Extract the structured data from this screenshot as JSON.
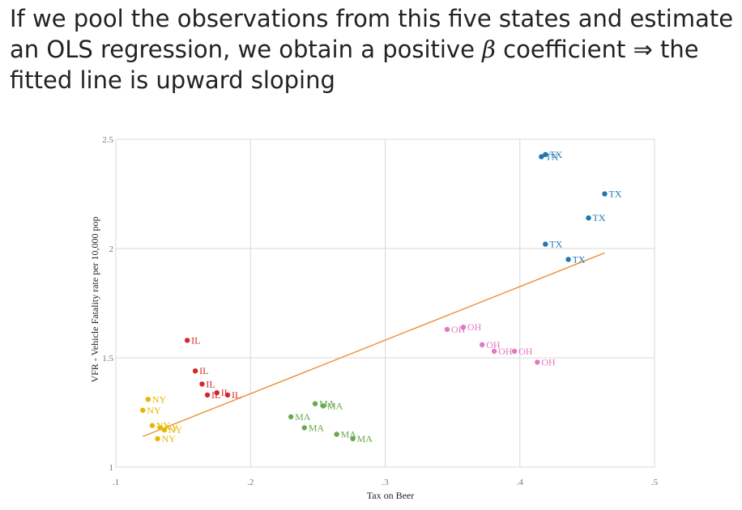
{
  "slide": {
    "text_before": "If we pool the observations from this five states and estimate an OLS regression, we obtain a positive ",
    "beta": "β",
    "text_after": " coefficient ⇒ the fitted line is upward sloping"
  },
  "chart_data": {
    "type": "scatter",
    "xlabel": "Tax on Beer",
    "ylabel": "VFR - Vehicle Fatality rate per 10,000 pop",
    "xlim": [
      0.1,
      0.5
    ],
    "ylim": [
      1.0,
      2.5
    ],
    "x_ticks": [
      0.1,
      0.2,
      0.3,
      0.4,
      0.5
    ],
    "x_tick_labels": [
      ".1",
      ".2",
      ".3",
      ".4",
      ".5"
    ],
    "y_ticks": [
      1.0,
      1.5,
      2.0,
      2.5
    ],
    "y_tick_labels": [
      "1",
      "1.5",
      "2",
      "2.5"
    ],
    "grid": true,
    "series": [
      {
        "name": "TX",
        "color": "#1f77b4",
        "points": [
          {
            "x": 0.419,
            "y": 2.43
          },
          {
            "x": 0.416,
            "y": 2.42
          },
          {
            "x": 0.463,
            "y": 2.25
          },
          {
            "x": 0.451,
            "y": 2.14
          },
          {
            "x": 0.419,
            "y": 2.02
          },
          {
            "x": 0.436,
            "y": 1.95
          }
        ]
      },
      {
        "name": "OH",
        "color": "#e377c2",
        "points": [
          {
            "x": 0.358,
            "y": 1.64
          },
          {
            "x": 0.346,
            "y": 1.63
          },
          {
            "x": 0.372,
            "y": 1.56
          },
          {
            "x": 0.381,
            "y": 1.53
          },
          {
            "x": 0.396,
            "y": 1.53
          },
          {
            "x": 0.413,
            "y": 1.48
          }
        ]
      },
      {
        "name": "IL",
        "color": "#d62728",
        "points": [
          {
            "x": 0.153,
            "y": 1.58
          },
          {
            "x": 0.159,
            "y": 1.44
          },
          {
            "x": 0.164,
            "y": 1.38
          },
          {
            "x": 0.168,
            "y": 1.33
          },
          {
            "x": 0.175,
            "y": 1.34
          },
          {
            "x": 0.183,
            "y": 1.33
          }
        ]
      },
      {
        "name": "NY",
        "color": "#e6b800",
        "points": [
          {
            "x": 0.124,
            "y": 1.31
          },
          {
            "x": 0.12,
            "y": 1.26
          },
          {
            "x": 0.127,
            "y": 1.19
          },
          {
            "x": 0.133,
            "y": 1.18
          },
          {
            "x": 0.136,
            "y": 1.17
          },
          {
            "x": 0.131,
            "y": 1.13
          }
        ]
      },
      {
        "name": "MA",
        "color": "#6aa84f",
        "points": [
          {
            "x": 0.248,
            "y": 1.29
          },
          {
            "x": 0.254,
            "y": 1.28
          },
          {
            "x": 0.23,
            "y": 1.23
          },
          {
            "x": 0.24,
            "y": 1.18
          },
          {
            "x": 0.264,
            "y": 1.15
          },
          {
            "x": 0.276,
            "y": 1.13
          }
        ]
      }
    ],
    "fitted_line": {
      "color": "#e8892b",
      "x": [
        0.12,
        0.463
      ],
      "y": [
        1.14,
        1.98
      ]
    }
  }
}
